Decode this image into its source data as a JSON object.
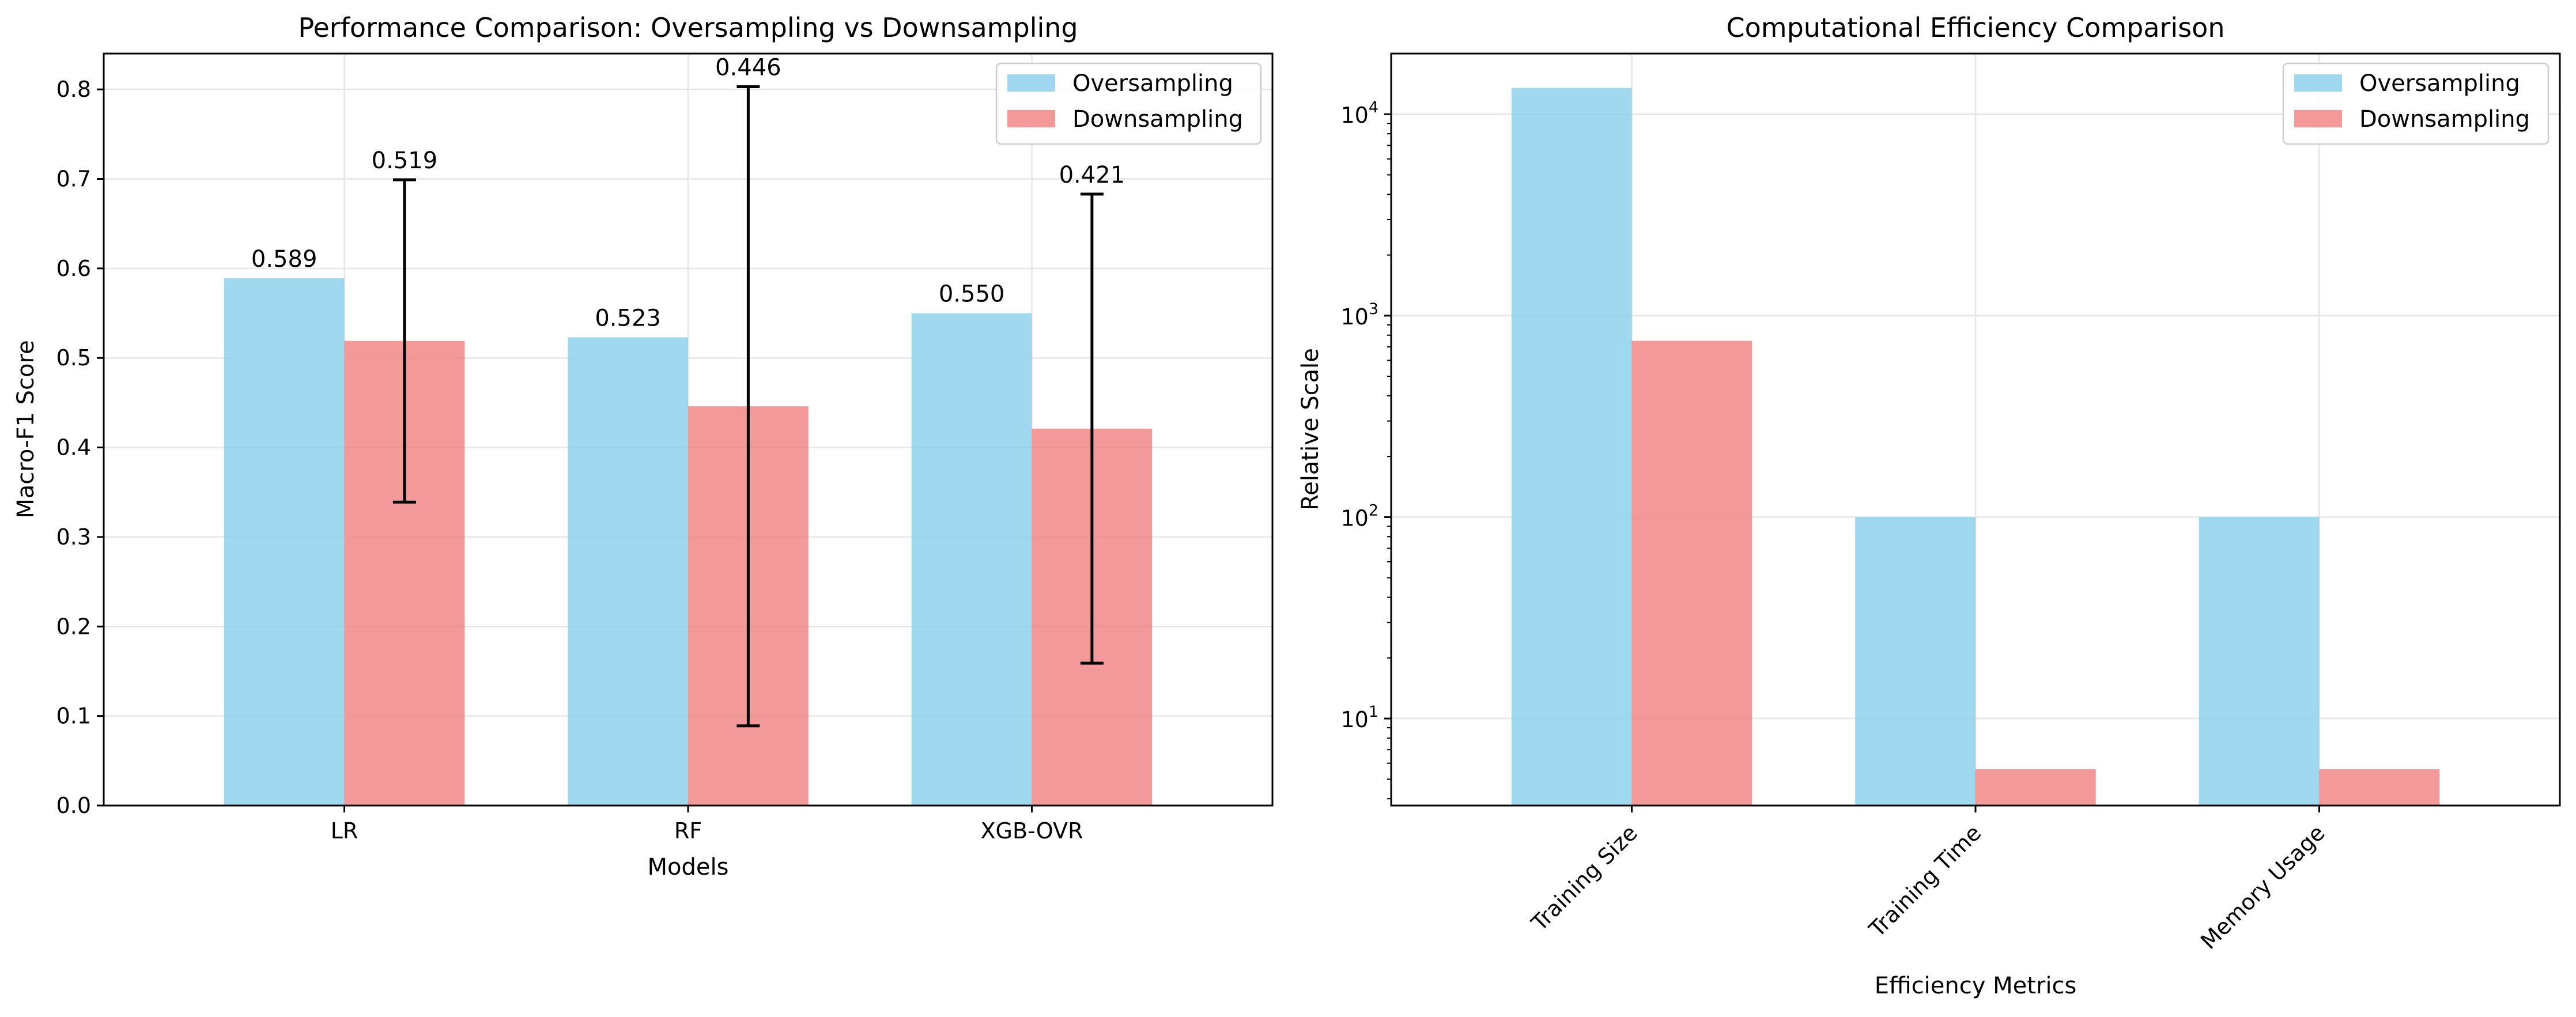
{
  "chart_data": [
    {
      "type": "bar",
      "title": "Performance Comparison: Oversampling vs Downsampling",
      "xlabel": "Models",
      "ylabel": "Macro-F1 Score",
      "categories": [
        "LR",
        "RF",
        "XGB-OVR"
      ],
      "series": [
        {
          "name": "Oversampling",
          "color": "#87ceeb",
          "values": [
            0.589,
            0.523,
            0.55
          ]
        },
        {
          "name": "Downsampling",
          "color": "#f08080",
          "values": [
            0.519,
            0.446,
            0.421
          ],
          "error": [
            0.18,
            0.357,
            0.262
          ]
        }
      ],
      "data_labels": [
        "0.589",
        "0.519",
        "0.523",
        "0.446",
        "0.550",
        "0.421"
      ],
      "yticks": [
        0.0,
        0.1,
        0.2,
        0.3,
        0.4,
        0.5,
        0.6,
        0.7,
        0.8
      ],
      "ytick_labels": [
        "0.0",
        "0.1",
        "0.2",
        "0.3",
        "0.4",
        "0.5",
        "0.6",
        "0.7",
        "0.8"
      ],
      "ylim": [
        0,
        0.84
      ],
      "grid": true,
      "legend": "upper right"
    },
    {
      "type": "bar",
      "title": "Computational Efficiency Comparison",
      "xlabel": "Efficiency Metrics",
      "ylabel": "Relative Scale",
      "categories": [
        "Training Size",
        "Training Time",
        "Memory Usage"
      ],
      "series": [
        {
          "name": "Oversampling",
          "color": "#87ceeb",
          "values": [
            13500,
            100,
            100
          ]
        },
        {
          "name": "Downsampling",
          "color": "#f08080",
          "values": [
            750,
            5.6,
            5.6
          ]
        }
      ],
      "yscale": "log",
      "yticks": [
        10,
        100,
        1000,
        10000
      ],
      "ytick_labels": [
        {
          "base": "10",
          "exp": "1"
        },
        {
          "base": "10",
          "exp": "2"
        },
        {
          "base": "10",
          "exp": "3"
        },
        {
          "base": "10",
          "exp": "4"
        }
      ],
      "ylim": [
        3.7,
        20000
      ],
      "xtick_rotation": 45,
      "grid": true,
      "legend": "upper right"
    }
  ]
}
